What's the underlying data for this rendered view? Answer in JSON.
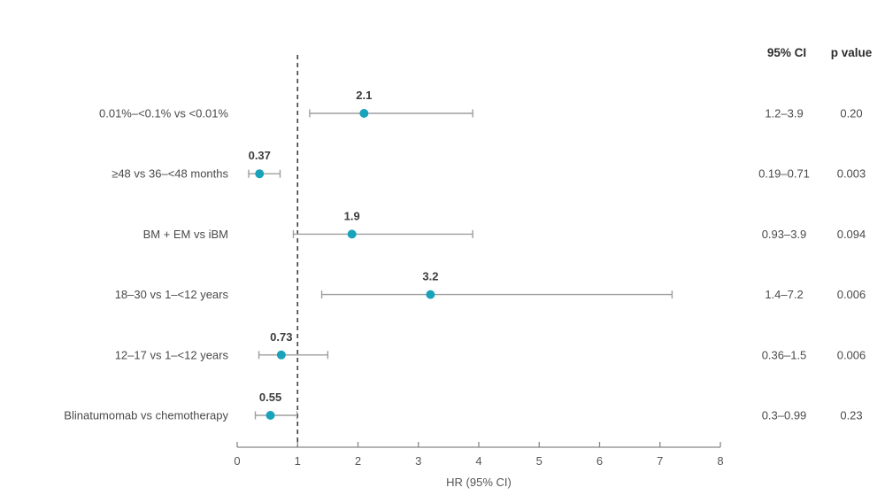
{
  "columns": {
    "ci_header": "95% CI",
    "p_header": "p value"
  },
  "chart_data": {
    "type": "forest",
    "xlabel": "HR (95% CI)",
    "xlim": [
      0,
      8
    ],
    "xticks": [
      0,
      1,
      2,
      3,
      4,
      5,
      6,
      7,
      8
    ],
    "reference_line": 1,
    "grid": false,
    "rows": [
      {
        "label": "0.01%–<0.1% vs <0.01%",
        "estimate": 2.1,
        "estimate_label": "2.1",
        "ci_low": 1.2,
        "ci_high": 3.9,
        "ci_text": "1.2–3.9",
        "p_value": "0.20"
      },
      {
        "label": "≥48 vs 36–<48 months",
        "estimate": 0.37,
        "estimate_label": "0.37",
        "ci_low": 0.19,
        "ci_high": 0.71,
        "ci_text": "0.19–0.71",
        "p_value": "0.003"
      },
      {
        "label": "BM + EM vs iBM",
        "estimate": 1.9,
        "estimate_label": "1.9",
        "ci_low": 0.93,
        "ci_high": 3.9,
        "ci_text": "0.93–3.9",
        "p_value": "0.094"
      },
      {
        "label": "18–30 vs 1–<12 years",
        "estimate": 3.2,
        "estimate_label": "3.2",
        "ci_low": 1.4,
        "ci_high": 7.2,
        "ci_text": "1.4–7.2",
        "p_value": "0.006"
      },
      {
        "label": "12–17 vs 1–<12 years",
        "estimate": 0.73,
        "estimate_label": "0.73",
        "ci_low": 0.36,
        "ci_high": 1.5,
        "ci_text": "0.36–1.5",
        "p_value": "0.006"
      },
      {
        "label": "Blinatumomab vs chemotherapy",
        "estimate": 0.55,
        "estimate_label": "0.55",
        "ci_low": 0.3,
        "ci_high": 0.99,
        "ci_text": "0.3–0.99",
        "p_value": "0.23"
      }
    ],
    "colors": {
      "marker": "#18a3ba",
      "ci_line": "#9e9e9e",
      "reference_line": "#3f3f3f",
      "axis": "#888888",
      "tick_text": "#555555",
      "row_label_text": "#4a4a4a",
      "estimate_text": "#3c3c3c",
      "header_text": "#2d2d2d"
    }
  }
}
